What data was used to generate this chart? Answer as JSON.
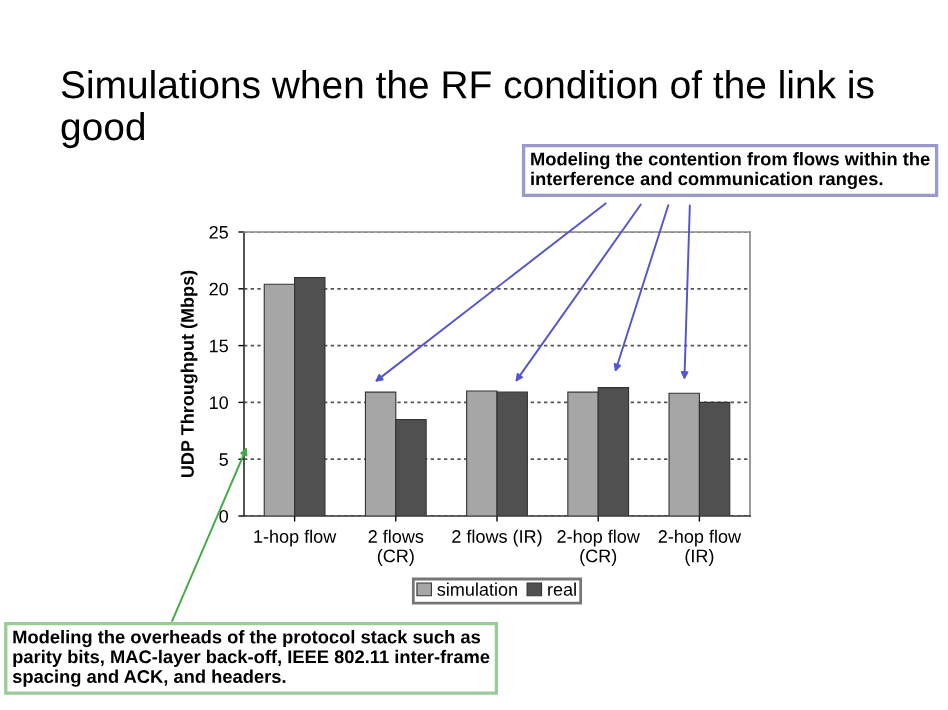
{
  "chart_data": {
    "type": "bar",
    "title": "Simulations when the RF condition of the link is good",
    "ylabel": "UDP Throughput (Mbps)",
    "categories": [
      "1-hop flow",
      "2 flows (CR)",
      "2 flows (IR)",
      "2-hop flow (CR)",
      "2-hop flow (IR)"
    ],
    "series": [
      {
        "name": "simulation",
        "color": "#a6a6a6",
        "values": [
          20.4,
          10.9,
          11.0,
          10.9,
          10.8
        ]
      },
      {
        "name": "real",
        "color": "#505050",
        "values": [
          21.0,
          8.5,
          10.9,
          11.3,
          10.0
        ]
      }
    ],
    "ylim": [
      0,
      25
    ],
    "yticks": [
      0,
      5,
      10,
      15,
      20,
      25
    ],
    "grid": "y",
    "legend": "bottom",
    "annotations": [
      "Modeling the contention from flows within the interference and communication ranges.",
      "Modeling the overheads of the protocol stack such as parity bits, MAC-layer back-off, IEEE 802.11 inter-frame spacing and ACK, and headers."
    ]
  }
}
